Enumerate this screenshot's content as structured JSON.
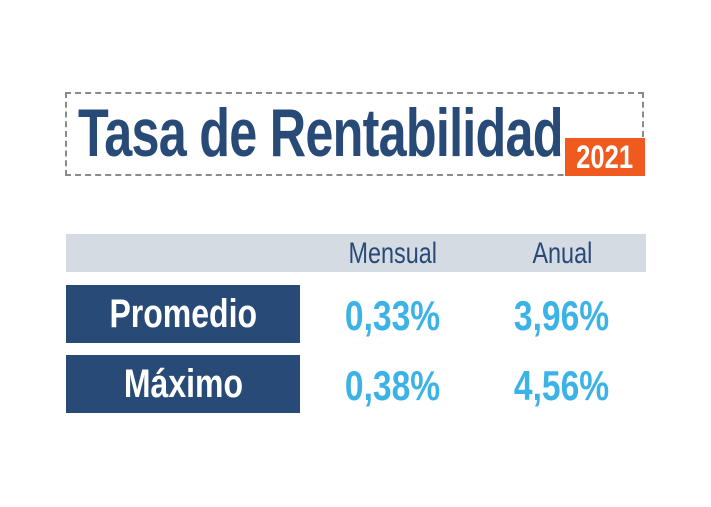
{
  "title": {
    "text": "Tasa de Rentabilidad",
    "year": "2021"
  },
  "table": {
    "columns": [
      "Mensual",
      "Anual"
    ],
    "rows": [
      {
        "label": "Promedio",
        "mensual": "0,33%",
        "anual": "3,96%"
      },
      {
        "label": "Máximo",
        "mensual": "0,38%",
        "anual": "4,56%"
      }
    ]
  },
  "colors": {
    "title_navy": "#284a76",
    "badge_orange": "#f05a1e",
    "header_gray": "#d5dbe3",
    "value_blue": "#3bb3e6",
    "border_gray": "#8a8a8a"
  }
}
